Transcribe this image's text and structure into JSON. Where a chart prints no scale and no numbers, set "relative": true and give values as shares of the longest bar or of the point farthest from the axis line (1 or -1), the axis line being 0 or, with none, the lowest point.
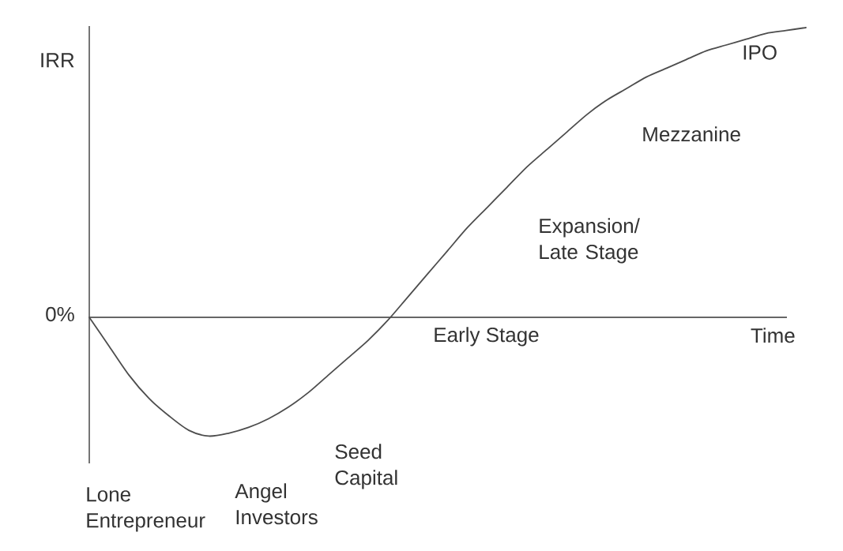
{
  "chart_data": {
    "type": "line",
    "xlabel": "Time",
    "ylabel": "IRR",
    "relative": true,
    "categories": [
      null,
      null,
      null,
      null,
      null,
      null,
      null,
      null,
      null,
      null,
      null,
      null,
      null,
      null,
      null,
      null,
      null,
      null,
      null,
      null,
      null,
      null,
      null,
      null,
      null,
      null,
      null,
      null,
      null,
      null,
      null,
      null,
      null,
      null,
      null,
      null,
      null
    ],
    "series": [
      {
        "color": "#4d4d4d",
        "values": [
          0,
          -0.1,
          -0.2,
          -0.28,
          -0.34,
          -0.39,
          -0.41,
          -0.4,
          -0.38,
          -0.35,
          -0.31,
          -0.26,
          -0.2,
          -0.14,
          -0.08,
          -0.01,
          0.07,
          0.15,
          0.23,
          0.31,
          0.38,
          0.45,
          0.52,
          0.58,
          0.64,
          0.7,
          0.75,
          0.79,
          0.83,
          0.86,
          0.89,
          0.92,
          0.94,
          0.96,
          0.98,
          0.99,
          1.0
        ]
      }
    ],
    "annotations": [
      "0%",
      "Lone Entrepreneur",
      "Angel Investors",
      "Seed Capital",
      "Early Stage",
      "Expansion/ Late Stage",
      "Mezzanine",
      "IPO"
    ]
  }
}
